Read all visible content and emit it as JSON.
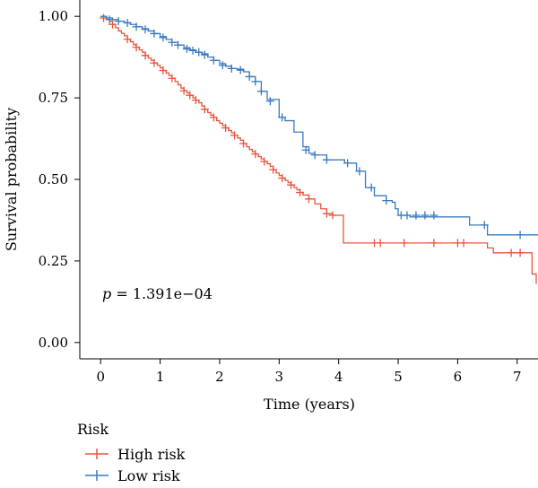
{
  "chart_data": {
    "type": "line",
    "xlabel": "Time (years)",
    "ylabel": "Survival probability",
    "xlim": [
      -0.35,
      7.35
    ],
    "ylim": [
      -0.05,
      1.05
    ],
    "x_ticks": [
      0,
      1,
      2,
      3,
      4,
      5,
      6,
      7
    ],
    "x_tick_labels": [
      "0",
      "1",
      "2",
      "3",
      "4",
      "5",
      "6",
      "7"
    ],
    "y_ticks": [
      0,
      0.25,
      0.5,
      0.75,
      1
    ],
    "y_tick_labels": [
      "0.00",
      "0.25",
      "0.50",
      "0.75",
      "1.00"
    ],
    "grid": false,
    "annotation": {
      "p_symbol": "p",
      "p_text": " = 1.391e−04"
    },
    "legend": {
      "title": "Risk",
      "position": "bottom-left"
    },
    "series": [
      {
        "name": "High risk",
        "color": "#e8553e",
        "step": [
          [
            0,
            1
          ],
          [
            0.05,
            0.995
          ],
          [
            0.1,
            0.99
          ],
          [
            0.15,
            0.985
          ],
          [
            0.2,
            0.975
          ],
          [
            0.25,
            0.965
          ],
          [
            0.3,
            0.955
          ],
          [
            0.35,
            0.948
          ],
          [
            0.4,
            0.94
          ],
          [
            0.45,
            0.93
          ],
          [
            0.5,
            0.922
          ],
          [
            0.55,
            0.913
          ],
          [
            0.6,
            0.905
          ],
          [
            0.65,
            0.897
          ],
          [
            0.7,
            0.89
          ],
          [
            0.75,
            0.88
          ],
          [
            0.8,
            0.872
          ],
          [
            0.85,
            0.865
          ],
          [
            0.9,
            0.857
          ],
          [
            0.95,
            0.85
          ],
          [
            1.0,
            0.842
          ],
          [
            1.05,
            0.834
          ],
          [
            1.1,
            0.826
          ],
          [
            1.15,
            0.818
          ],
          [
            1.2,
            0.81
          ],
          [
            1.25,
            0.8
          ],
          [
            1.3,
            0.79
          ],
          [
            1.35,
            0.78
          ],
          [
            1.4,
            0.772
          ],
          [
            1.45,
            0.765
          ],
          [
            1.5,
            0.758
          ],
          [
            1.55,
            0.75
          ],
          [
            1.6,
            0.743
          ],
          [
            1.65,
            0.735
          ],
          [
            1.7,
            0.725
          ],
          [
            1.75,
            0.715
          ],
          [
            1.8,
            0.705
          ],
          [
            1.85,
            0.697
          ],
          [
            1.9,
            0.69
          ],
          [
            1.95,
            0.68
          ],
          [
            2.0,
            0.672
          ],
          [
            2.05,
            0.665
          ],
          [
            2.1,
            0.658
          ],
          [
            2.15,
            0.65
          ],
          [
            2.2,
            0.643
          ],
          [
            2.25,
            0.635
          ],
          [
            2.3,
            0.627
          ],
          [
            2.35,
            0.62
          ],
          [
            2.4,
            0.61
          ],
          [
            2.45,
            0.6
          ],
          [
            2.5,
            0.592
          ],
          [
            2.55,
            0.585
          ],
          [
            2.6,
            0.578
          ],
          [
            2.65,
            0.57
          ],
          [
            2.7,
            0.563
          ],
          [
            2.75,
            0.555
          ],
          [
            2.8,
            0.548
          ],
          [
            2.85,
            0.54
          ],
          [
            2.9,
            0.53
          ],
          [
            2.95,
            0.52
          ],
          [
            3.0,
            0.512
          ],
          [
            3.05,
            0.504
          ],
          [
            3.1,
            0.497
          ],
          [
            3.15,
            0.49
          ],
          [
            3.2,
            0.483
          ],
          [
            3.25,
            0.475
          ],
          [
            3.3,
            0.468
          ],
          [
            3.35,
            0.46
          ],
          [
            3.4,
            0.452
          ],
          [
            3.5,
            0.44
          ],
          [
            3.6,
            0.425
          ],
          [
            3.7,
            0.41
          ],
          [
            3.8,
            0.395
          ],
          [
            3.9,
            0.39
          ],
          [
            4.08,
            0.305
          ],
          [
            5.5,
            0.305
          ],
          [
            6.5,
            0.29
          ],
          [
            6.6,
            0.275
          ],
          [
            7.25,
            0.21
          ],
          [
            7.32,
            0.18
          ]
        ],
        "censor": [
          [
            0.05,
            0.995
          ],
          [
            0.2,
            0.975
          ],
          [
            0.45,
            0.93
          ],
          [
            0.6,
            0.905
          ],
          [
            0.75,
            0.88
          ],
          [
            0.9,
            0.857
          ],
          [
            1.05,
            0.834
          ],
          [
            1.2,
            0.81
          ],
          [
            1.4,
            0.772
          ],
          [
            1.5,
            0.758
          ],
          [
            1.6,
            0.743
          ],
          [
            1.75,
            0.715
          ],
          [
            1.9,
            0.69
          ],
          [
            2.1,
            0.658
          ],
          [
            2.25,
            0.635
          ],
          [
            2.4,
            0.61
          ],
          [
            2.6,
            0.578
          ],
          [
            2.75,
            0.555
          ],
          [
            2.9,
            0.53
          ],
          [
            3.05,
            0.504
          ],
          [
            3.2,
            0.483
          ],
          [
            3.35,
            0.46
          ],
          [
            3.5,
            0.44
          ],
          [
            3.8,
            0.395
          ],
          [
            3.9,
            0.39
          ],
          [
            4.6,
            0.305
          ],
          [
            4.7,
            0.305
          ],
          [
            5.1,
            0.305
          ],
          [
            5.6,
            0.305
          ],
          [
            6.0,
            0.305
          ],
          [
            6.1,
            0.305
          ],
          [
            6.9,
            0.275
          ],
          [
            7.05,
            0.275
          ]
        ]
      },
      {
        "name": "Low risk",
        "color": "#3a7bbf",
        "step": [
          [
            0,
            1
          ],
          [
            0.1,
            0.995
          ],
          [
            0.2,
            0.99
          ],
          [
            0.3,
            0.985
          ],
          [
            0.4,
            0.98
          ],
          [
            0.5,
            0.975
          ],
          [
            0.6,
            0.968
          ],
          [
            0.7,
            0.962
          ],
          [
            0.8,
            0.955
          ],
          [
            0.9,
            0.947
          ],
          [
            1.0,
            0.938
          ],
          [
            1.1,
            0.929
          ],
          [
            1.2,
            0.92
          ],
          [
            1.3,
            0.912
          ],
          [
            1.4,
            0.904
          ],
          [
            1.5,
            0.897
          ],
          [
            1.6,
            0.89
          ],
          [
            1.7,
            0.885
          ],
          [
            1.8,
            0.875
          ],
          [
            1.9,
            0.865
          ],
          [
            2.0,
            0.855
          ],
          [
            2.1,
            0.847
          ],
          [
            2.2,
            0.84
          ],
          [
            2.3,
            0.838
          ],
          [
            2.4,
            0.83
          ],
          [
            2.5,
            0.815
          ],
          [
            2.6,
            0.8
          ],
          [
            2.7,
            0.77
          ],
          [
            2.8,
            0.745
          ],
          [
            3.0,
            0.69
          ],
          [
            3.1,
            0.68
          ],
          [
            3.25,
            0.645
          ],
          [
            3.4,
            0.6
          ],
          [
            3.5,
            0.58
          ],
          [
            3.6,
            0.575
          ],
          [
            3.8,
            0.56
          ],
          [
            4.1,
            0.55
          ],
          [
            4.3,
            0.525
          ],
          [
            4.45,
            0.475
          ],
          [
            4.6,
            0.45
          ],
          [
            4.8,
            0.435
          ],
          [
            4.9,
            0.43
          ],
          [
            4.95,
            0.41
          ],
          [
            5.0,
            0.39
          ],
          [
            5.2,
            0.385
          ],
          [
            6.2,
            0.36
          ],
          [
            6.35,
            0.36
          ],
          [
            6.5,
            0.33
          ],
          [
            7.35,
            0.33
          ]
        ],
        "censor": [
          [
            0.15,
            0.99
          ],
          [
            0.3,
            0.985
          ],
          [
            0.45,
            0.98
          ],
          [
            0.6,
            0.968
          ],
          [
            0.75,
            0.96
          ],
          [
            0.9,
            0.947
          ],
          [
            1.05,
            0.935
          ],
          [
            1.2,
            0.92
          ],
          [
            1.3,
            0.912
          ],
          [
            1.45,
            0.9
          ],
          [
            1.55,
            0.895
          ],
          [
            1.65,
            0.89
          ],
          [
            1.75,
            0.882
          ],
          [
            1.9,
            0.865
          ],
          [
            2.05,
            0.85
          ],
          [
            2.2,
            0.84
          ],
          [
            2.35,
            0.835
          ],
          [
            2.5,
            0.815
          ],
          [
            2.6,
            0.8
          ],
          [
            2.7,
            0.77
          ],
          [
            2.85,
            0.74
          ],
          [
            3.05,
            0.69
          ],
          [
            3.45,
            0.59
          ],
          [
            3.6,
            0.575
          ],
          [
            3.8,
            0.56
          ],
          [
            4.15,
            0.55
          ],
          [
            4.35,
            0.525
          ],
          [
            4.55,
            0.475
          ],
          [
            4.8,
            0.435
          ],
          [
            5.05,
            0.39
          ],
          [
            5.15,
            0.39
          ],
          [
            5.3,
            0.39
          ],
          [
            5.45,
            0.39
          ],
          [
            5.6,
            0.39
          ],
          [
            6.45,
            0.36
          ],
          [
            7.05,
            0.33
          ]
        ]
      }
    ]
  }
}
